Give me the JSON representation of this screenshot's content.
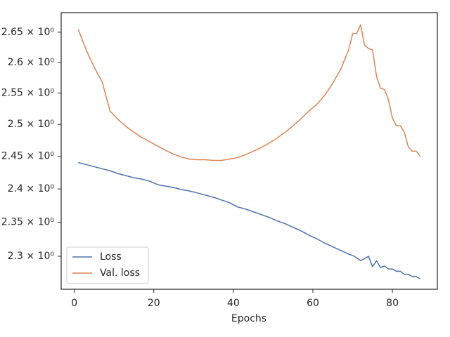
{
  "chart_data": {
    "type": "line",
    "xlabel": "Epochs",
    "yscale": "log",
    "legend": "lower left",
    "xlim": [
      -3.3,
      91.3
    ],
    "xticks": [
      0,
      20,
      40,
      60,
      80
    ],
    "ylim": [
      2.2525,
      2.683
    ],
    "yticks": [
      {
        "value": 2.3,
        "label": "2.3 × 10⁰"
      },
      {
        "value": 2.35,
        "label": "2.35 × 10⁰"
      },
      {
        "value": 2.4,
        "label": "2.4 × 10⁰"
      },
      {
        "value": 2.45,
        "label": "2.45 × 10⁰"
      },
      {
        "value": 2.5,
        "label": "2.5 × 10⁰"
      },
      {
        "value": 2.55,
        "label": "2.55 × 10⁰"
      },
      {
        "value": 2.6,
        "label": "2.6 × 10⁰"
      },
      {
        "value": 2.65,
        "label": "2.65 × 10⁰"
      }
    ],
    "x": [
      1,
      3,
      5,
      7,
      9,
      11,
      13,
      15,
      17,
      19,
      21,
      23,
      25,
      27,
      29,
      31,
      33,
      35,
      37,
      39,
      41,
      43,
      45,
      47,
      49,
      51,
      53,
      55,
      57,
      59,
      61,
      63,
      65,
      67,
      69,
      70,
      71,
      72,
      73,
      74,
      75,
      76,
      77,
      78,
      79,
      80,
      81,
      82,
      83,
      84,
      85,
      86,
      87
    ],
    "series": [
      {
        "name": "Loss",
        "color": "#4c72b0",
        "values": [
          2.4404,
          2.4372,
          2.434,
          2.4309,
          2.4277,
          2.4234,
          2.4202,
          2.417,
          2.4149,
          2.4117,
          2.4064,
          2.4043,
          2.4021,
          2.399,
          2.3969,
          2.3938,
          2.3906,
          2.3875,
          2.3833,
          2.3792,
          2.3729,
          2.3698,
          2.3656,
          2.3615,
          2.3573,
          2.3521,
          2.3479,
          2.3426,
          2.3372,
          2.3309,
          2.3255,
          2.3191,
          2.3138,
          2.3085,
          2.3032,
          2.3011,
          2.2978,
          2.2935,
          2.2967,
          2.3,
          2.2848,
          2.2935,
          2.2837,
          2.2859,
          2.2815,
          2.2815,
          2.2783,
          2.2783,
          2.2739,
          2.2739,
          2.2707,
          2.2707,
          2.2674
        ]
      },
      {
        "name": "Val. loss",
        "color": "#dd8452",
        "values": [
          2.6545,
          2.6205,
          2.592,
          2.5682,
          2.5211,
          2.5078,
          2.4967,
          2.4875,
          2.4795,
          2.4727,
          2.4659,
          2.4591,
          2.4534,
          2.4489,
          2.4457,
          2.4447,
          2.4447,
          2.4436,
          2.4436,
          2.4457,
          2.4479,
          2.4523,
          2.458,
          2.4636,
          2.4705,
          2.4784,
          2.4875,
          2.4978,
          2.5089,
          2.5211,
          2.5318,
          2.5466,
          2.5659,
          2.5886,
          2.6205,
          2.6477,
          2.6477,
          2.6625,
          2.6284,
          2.6227,
          2.6205,
          2.5773,
          2.558,
          2.5557,
          2.5394,
          2.51,
          2.4978,
          2.4978,
          2.4875,
          2.4648,
          2.458,
          2.458,
          2.45
        ]
      }
    ]
  }
}
